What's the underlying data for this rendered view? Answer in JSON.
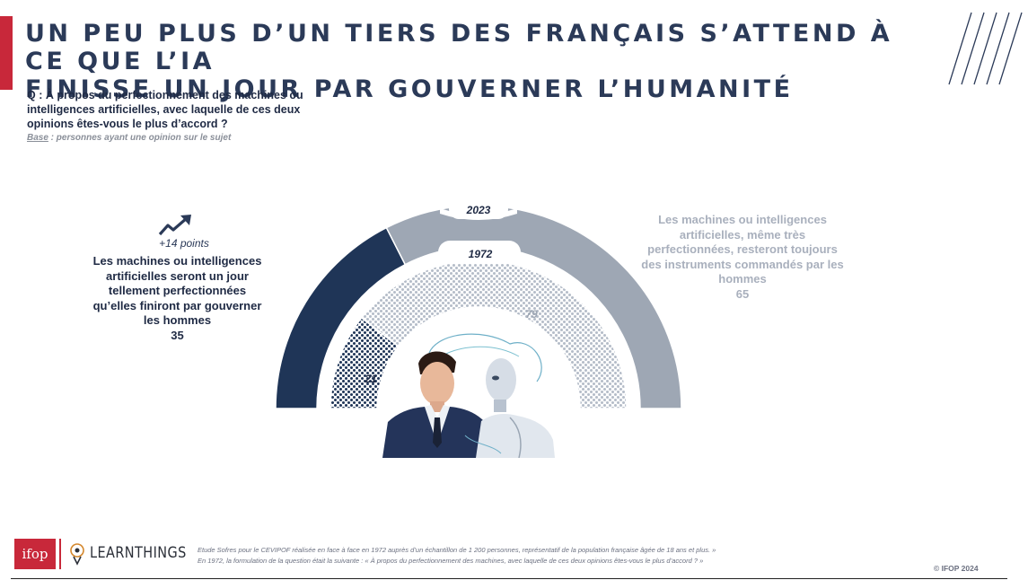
{
  "header": {
    "title_line1": "UN PEU PLUS D’UN TIERS DES FRANÇAIS S’ATTEND À CE QUE L’IA",
    "title_line2": "FINISSE UN JOUR PAR GOUVERNER L’HUMANITÉ"
  },
  "question": {
    "text": "Q : À propos du perfectionnement des machines ou intelligences artificielles, avec laquelle de ces deux opinions êtes-vous le plus d’accord ?",
    "base_label": "Base",
    "base_text": " : personnes ayant une opinion sur le sujet"
  },
  "annotation": {
    "trend": "+14 points",
    "icon": "trend-up-arrow-icon"
  },
  "left_label": {
    "text": "Les machines ou intelligences artificielles seront un jour tellement perfectionnées qu’elles finiront par gouverner les hommes",
    "value": "35"
  },
  "right_label": {
    "text": "Les machines ou intelligences artificielles, même très perfectionnées, resteront toujours des instruments commandés par les hommes",
    "value": "65"
  },
  "chart_data": {
    "type": "donut-half",
    "series": [
      {
        "name": "2023",
        "values": [
          35,
          65
        ]
      },
      {
        "name": "1972",
        "values": [
          21,
          79
        ]
      }
    ],
    "categories": [
      "Les machines ou intelligences artificielles seront un jour tellement perfectionnées qu’elles finiront par gouverner les hommes",
      "Les machines ou intelligences artificielles, même très perfectionnées, resteront toujours des instruments commandés par les hommes"
    ],
    "inner_labels": [
      "21",
      "79"
    ],
    "colors": {
      "gov_2023": "#1f3557",
      "instr_2023": "#9ea7b4",
      "gov_1972": "#1f3557",
      "instr_1972": "#b4bcc8"
    }
  },
  "footer": {
    "logo_ifop": "ifop",
    "logo_learnthings": "LEARNTHINGS",
    "note_line1": "Etude Sofres pour le CEVIPOF réalisée en face à face en 1972 auprès d’un échantillon de 1 200 personnes, représentatif de la population française âgée de 18 ans et plus. »",
    "note_line2": "En 1972, la formulation de la question était la suivante : « À propos du perfectionnement des machines, avec laquelle de ces deux opinions êtes-vous le plus d’accord ? »",
    "copyright": "© IFOP 2024"
  }
}
